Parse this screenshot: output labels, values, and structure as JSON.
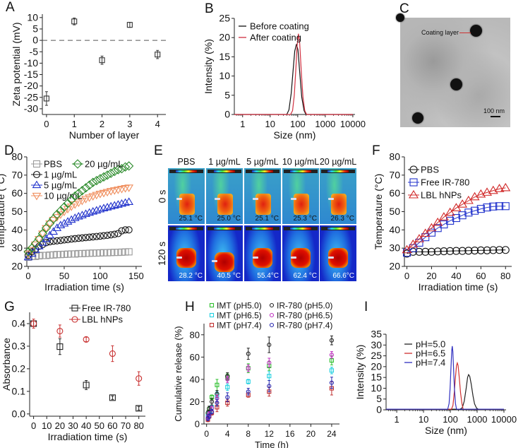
{
  "panel_labels": {
    "A": "A",
    "B": "B",
    "C": "C",
    "D": "D",
    "E": "E",
    "F": "F",
    "G": "G",
    "H": "H",
    "I": "I"
  },
  "tem_image": {
    "annotation": "Coating layer",
    "scale_bar": "100 nm"
  },
  "thermal_images": {
    "columns": [
      "PBS",
      "1 µg/mL",
      "5 µg/mL",
      "10 µg/mL",
      "20 µg/mL"
    ],
    "rows": [
      "0 s",
      "120 s"
    ],
    "temps": [
      [
        "25.1 °C",
        "25.0 °C",
        "25.1 °C",
        "25.3 °C",
        "26.3 °C"
      ],
      [
        "28.2 °C",
        "40.5 °C",
        "55.4°C",
        "62.4 °C",
        "66.6°C"
      ]
    ]
  },
  "chart_data": [
    {
      "id": "A",
      "type": "scatter",
      "xlabel": "Number of layer",
      "ylabel": "Zeta potential (mV)",
      "xlim": [
        -0.15,
        4.3
      ],
      "ylim": [
        -32.5,
        11.5
      ],
      "xticks": [
        0,
        1,
        2,
        3,
        4
      ],
      "yticks": [
        10,
        5,
        0,
        -5,
        -10,
        -15,
        -20,
        -25,
        -30
      ],
      "reference_line": {
        "y": 0,
        "style": "dashed"
      },
      "x": [
        0,
        1,
        2,
        3,
        4
      ],
      "series": [
        {
          "color": "#333333",
          "marker": "square",
          "y": [
            -25.5,
            8.3,
            -8.7,
            6.8,
            -6.2
          ],
          "err": [
            3,
            1.5,
            1.8,
            1.1,
            1.8
          ]
        }
      ]
    },
    {
      "id": "B",
      "type": "line",
      "xlabel": "Size (nm)",
      "ylabel": "Intensity (%)",
      "xscale": "log",
      "xlim": [
        0.5,
        12000
      ],
      "ylim": [
        0,
        25
      ],
      "xticks": [
        1,
        10,
        100,
        1000,
        10000
      ],
      "yticks": [
        0,
        5,
        10,
        15,
        20,
        25
      ],
      "legend": "top-left",
      "series": [
        {
          "name": "Before coating",
          "color": "#111111",
          "points": [
            [
              0.5,
              0
            ],
            [
              40,
              0
            ],
            [
              48,
              1.2
            ],
            [
              58,
              5.5
            ],
            [
              68,
              11.5
            ],
            [
              78,
              16.5
            ],
            [
              90,
              18.3
            ],
            [
              102,
              16.8
            ],
            [
              118,
              11
            ],
            [
              140,
              4.5
            ],
            [
              170,
              1
            ],
            [
              200,
              0
            ],
            [
              10000,
              0
            ]
          ]
        },
        {
          "name": "After coating",
          "color": "#d03040",
          "points": [
            [
              0.5,
              0
            ],
            [
              55,
              0
            ],
            [
              65,
              1
            ],
            [
              75,
              5
            ],
            [
              85,
              11.5
            ],
            [
              95,
              18
            ],
            [
              106,
              21
            ],
            [
              118,
              18.5
            ],
            [
              135,
              11
            ],
            [
              155,
              4.5
            ],
            [
              180,
              1
            ],
            [
              210,
              0
            ],
            [
              10000,
              0
            ]
          ]
        }
      ]
    },
    {
      "id": "D",
      "type": "scatter",
      "xlabel": "Irradiation time (s)",
      "ylabel": "Temperature (°C)",
      "xlim": [
        -2,
        158
      ],
      "ylim": [
        20,
        80
      ],
      "xticks": [
        0,
        50,
        100,
        150
      ],
      "yticks": [
        20,
        30,
        40,
        50,
        60,
        70,
        80
      ],
      "legend": "top-left",
      "x": [
        0,
        5,
        10,
        15,
        20,
        25,
        30,
        35,
        40,
        45,
        50,
        55,
        60,
        65,
        70,
        75,
        80,
        85,
        90,
        95,
        100,
        105,
        110,
        115,
        120,
        125,
        130,
        135,
        140
      ],
      "series": [
        {
          "name": "PBS",
          "color": "#9a9a9a",
          "marker": "square",
          "y": [
            25,
            25.5,
            25.5,
            25.8,
            26,
            26,
            26.2,
            26.3,
            26.5,
            26.5,
            26.6,
            26.7,
            26.8,
            26.8,
            27,
            27,
            27.1,
            27.2,
            27.3,
            27.3,
            27.4,
            27.5,
            27.5,
            27.6,
            27.7,
            27.7,
            27.8,
            27.9,
            28
          ]
        },
        {
          "name": "1 µg/mL",
          "color": "#111111",
          "marker": "circle",
          "y": [
            26,
            28,
            29.5,
            31,
            32,
            33,
            33.5,
            33.8,
            34,
            34.2,
            34.5,
            34.7,
            35,
            35.2,
            35.4,
            35.6,
            35.8,
            36,
            36.2,
            36.4,
            36.6,
            36.8,
            37,
            37.3,
            37.6,
            38,
            39.5,
            40,
            40
          ]
        },
        {
          "name": "5 µg/mL",
          "color": "#2233cc",
          "marker": "triangle-up",
          "y": [
            25,
            27,
            29,
            31,
            33,
            35,
            37,
            39,
            41,
            42.5,
            43.5,
            44.5,
            45.5,
            46.5,
            47.3,
            48,
            48.7,
            49.4,
            50,
            50.6,
            51.2,
            51.8,
            52.3,
            52.8,
            53.3,
            53.8,
            54.3,
            54.8,
            55.3
          ]
        },
        {
          "name": "10 µg/mL",
          "color": "#f09060",
          "marker": "triangle-down",
          "y": [
            27,
            29,
            32,
            35,
            38,
            41,
            43.5,
            45.5,
            47,
            48.5,
            50,
            51.5,
            52.8,
            54,
            55,
            56,
            57,
            57.8,
            58.5,
            59.2,
            59.8,
            60.3,
            60.8,
            61.3,
            61.7,
            62.1,
            62.5,
            62.9,
            63.2
          ]
        },
        {
          "name": "20 µg/mL",
          "color": "#2a8a2a",
          "marker": "diamond",
          "y": [
            28,
            30,
            32.5,
            35,
            38,
            41,
            43.5,
            46,
            48.5,
            50.5,
            52.5,
            54.5,
            56.5,
            58.5,
            60,
            61.5,
            63,
            64.5,
            66,
            67,
            68,
            69,
            70,
            71,
            72,
            73,
            73.5,
            74.5,
            75
          ]
        }
      ]
    },
    {
      "id": "F",
      "type": "line",
      "xlabel": "Irradiation time (s)",
      "ylabel": "Temperature (°C)",
      "xlim": [
        -2,
        85
      ],
      "ylim": [
        20,
        80
      ],
      "xticks": [
        0,
        20,
        40,
        60,
        80
      ],
      "yticks": [
        20,
        30,
        40,
        50,
        60,
        70,
        80
      ],
      "legend": "top-left",
      "x": [
        0,
        5,
        10,
        15,
        20,
        25,
        30,
        35,
        40,
        45,
        50,
        55,
        60,
        65,
        70,
        75,
        80
      ],
      "series": [
        {
          "name": "PBS",
          "color": "#111111",
          "marker": "circle",
          "y": [
            27,
            28,
            28,
            28,
            28,
            28.2,
            28.3,
            28.4,
            28.5,
            28.5,
            28.6,
            28.7,
            28.8,
            28.8,
            28.9,
            29,
            29
          ]
        },
        {
          "name": "Free IR-780",
          "color": "#2233cc",
          "marker": "square",
          "y": [
            27.5,
            30,
            33,
            36,
            38.5,
            41,
            43,
            45,
            46.5,
            48,
            49.5,
            50.5,
            51.5,
            52.3,
            52.8,
            53,
            53
          ]
        },
        {
          "name": "LBL hNPs",
          "color": "#d02828",
          "marker": "triangle-up",
          "y": [
            29,
            32,
            35,
            38,
            41,
            44,
            47,
            49.5,
            52,
            54,
            56,
            58,
            59.5,
            60.5,
            61.5,
            62.5,
            63
          ]
        }
      ]
    },
    {
      "id": "G",
      "type": "scatter",
      "xlabel": "Irradiation time (s)",
      "ylabel": "Absorbance",
      "xlim": [
        -3,
        85
      ],
      "ylim": [
        -0.01,
        0.45
      ],
      "xticks": [
        0,
        10,
        20,
        30,
        40,
        50,
        60,
        70,
        80
      ],
      "yticks": [
        0,
        0.1,
        0.2,
        0.3,
        0.4
      ],
      "yticklabels": [
        "0.0",
        "0.1",
        "0.2",
        "0.3",
        "0.4"
      ],
      "legend": "top-right",
      "x": [
        0,
        20,
        40,
        60,
        80
      ],
      "series": [
        {
          "name": "Free IR-780",
          "color": "#222222",
          "marker": "square",
          "y": [
            0.4,
            0.298,
            0.128,
            0.072,
            0.025
          ],
          "err": [
            0.012,
            0.035,
            0.02,
            0.008,
            0.008
          ]
        },
        {
          "name": "LBL hNPs",
          "color": "#c83030",
          "marker": "circle",
          "y": [
            0.4,
            0.367,
            0.33,
            0.267,
            0.157
          ],
          "err": [
            0.02,
            0.027,
            0.01,
            0.035,
            0.03
          ]
        }
      ]
    },
    {
      "id": "H",
      "type": "scatter",
      "xlabel": "Time (h)",
      "ylabel": "Cumulative release (%)",
      "xlim": [
        -0.5,
        25.5
      ],
      "ylim": [
        0,
        90
      ],
      "xticks": [
        0,
        4,
        8,
        12,
        16,
        20,
        24
      ],
      "yticks": [
        0,
        20,
        40,
        60,
        80
      ],
      "legend": "top",
      "x": [
        0.25,
        0.5,
        1,
        2,
        4,
        8,
        12,
        24
      ],
      "series": [
        {
          "name": "IMT (pH5.0)",
          "color": "#30c030",
          "marker": "square",
          "y": [
            9,
            13,
            24,
            35,
            42,
            50,
            52,
            57
          ],
          "err": [
            3,
            2,
            2,
            5,
            3,
            4,
            4,
            4
          ]
        },
        {
          "name": "IMT (pH6.5)",
          "color": "#20d0e0",
          "marker": "square",
          "y": [
            7,
            10,
            15,
            26,
            33,
            38,
            43,
            48
          ],
          "err": [
            2,
            2,
            2,
            3,
            3,
            2,
            4,
            3
          ]
        },
        {
          "name": "IMT (pH7.4)",
          "color": "#c03030",
          "marker": "square",
          "y": [
            4,
            7,
            10,
            15,
            19,
            26,
            29,
            32
          ],
          "err": [
            2,
            2,
            2,
            4,
            3,
            2,
            4,
            6
          ]
        },
        {
          "name": "IR-780 (pH5.0)",
          "color": "#222222",
          "marker": "circle",
          "y": [
            10,
            14,
            20,
            27,
            43,
            63,
            71,
            75
          ],
          "err": [
            2,
            2,
            3,
            3,
            3,
            5,
            7,
            4
          ]
        },
        {
          "name": "IR-780 (pH6.5)",
          "color": "#c030c0",
          "marker": "circle",
          "y": [
            6,
            9,
            14,
            23,
            40,
            50,
            55,
            62
          ],
          "err": [
            2,
            2,
            2,
            3,
            3,
            3,
            4,
            3
          ]
        },
        {
          "name": "IR-780 (pH7.4)",
          "color": "#2828b0",
          "marker": "circle",
          "y": [
            5,
            7,
            11,
            19,
            24,
            29,
            34,
            37
          ],
          "err": [
            2,
            2,
            2,
            3,
            4,
            3,
            5,
            5
          ]
        }
      ]
    },
    {
      "id": "I",
      "type": "line",
      "xlabel": "Size (nm)",
      "ylabel": "Intensity (%)",
      "xscale": "log",
      "xlim": [
        0.4,
        12000
      ],
      "ylim": [
        0,
        35
      ],
      "xticks": [
        1,
        10,
        100,
        1000,
        10000
      ],
      "yticks": [
        0,
        5,
        10,
        15,
        20,
        25,
        30,
        35
      ],
      "legend": "top-left",
      "series": [
        {
          "name": "pH=5.0",
          "color": "#222222",
          "points": [
            [
              0.4,
              0.3
            ],
            [
              230,
              0.3
            ],
            [
              280,
              1
            ],
            [
              330,
              4
            ],
            [
              390,
              10
            ],
            [
              440,
              15
            ],
            [
              480,
              16.3
            ],
            [
              530,
              15.5
            ],
            [
              600,
              12
            ],
            [
              700,
              6.5
            ],
            [
              800,
              2.8
            ],
            [
              950,
              0.8
            ],
            [
              1100,
              0.3
            ],
            [
              10000,
              0.3
            ]
          ]
        },
        {
          "name": "pH=6.5",
          "color": "#d03030",
          "points": [
            [
              0.4,
              0.3
            ],
            [
              110,
              0.3
            ],
            [
              125,
              2
            ],
            [
              140,
              8
            ],
            [
              155,
              15
            ],
            [
              170,
              20.5
            ],
            [
              182,
              21.7
            ],
            [
              195,
              20.5
            ],
            [
              215,
              15
            ],
            [
              240,
              8
            ],
            [
              270,
              3
            ],
            [
              300,
              0.3
            ],
            [
              10000,
              0.3
            ]
          ]
        },
        {
          "name": "pH=7.4",
          "color": "#3030c0",
          "points": [
            [
              0.4,
              0.3
            ],
            [
              80,
              0.3
            ],
            [
              90,
              3
            ],
            [
              98,
              10
            ],
            [
              106,
              20
            ],
            [
              113,
              27.5
            ],
            [
              118,
              29.5
            ],
            [
              124,
              27
            ],
            [
              132,
              19
            ],
            [
              142,
              10
            ],
            [
              155,
              3
            ],
            [
              170,
              0.3
            ],
            [
              10000,
              0.3
            ]
          ]
        }
      ]
    }
  ]
}
